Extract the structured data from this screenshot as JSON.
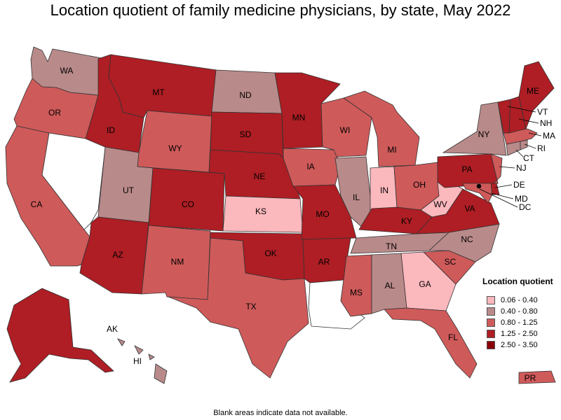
{
  "title": "Location quotient of family medicine physicians, by state, May 2022",
  "footnote": "Blank areas indicate data not available.",
  "legend": {
    "title": "Location quotient",
    "items": [
      {
        "label": "0.06 - 0.40",
        "color": "#fbb8bd"
      },
      {
        "label": "0.40 - 0.80",
        "color": "#b98a8a"
      },
      {
        "label": "0.80 - 1.25",
        "color": "#cf5a5a"
      },
      {
        "label": "1.25 - 2.50",
        "color": "#ae1e24"
      },
      {
        "label": "2.50 - 3.50",
        "color": "#8a0009"
      }
    ]
  },
  "no_data_color": "#ffffff",
  "states": {
    "WA": {
      "label": "WA",
      "class": 1
    },
    "OR": {
      "label": "OR",
      "class": 2
    },
    "CA": {
      "label": "CA",
      "class": 2
    },
    "NV": {
      "label": "",
      "class": -1
    },
    "ID": {
      "label": "ID",
      "class": 3
    },
    "MT": {
      "label": "MT",
      "class": 3
    },
    "WY": {
      "label": "WY",
      "class": 2
    },
    "UT": {
      "label": "UT",
      "class": 1
    },
    "AZ": {
      "label": "AZ",
      "class": 3
    },
    "CO": {
      "label": "CO",
      "class": 3
    },
    "NM": {
      "label": "NM",
      "class": 2
    },
    "ND": {
      "label": "ND",
      "class": 1
    },
    "SD": {
      "label": "SD",
      "class": 3
    },
    "NE": {
      "label": "NE",
      "class": 3
    },
    "KS": {
      "label": "KS",
      "class": 0
    },
    "OK": {
      "label": "OK",
      "class": 3
    },
    "TX": {
      "label": "TX",
      "class": 2
    },
    "MN": {
      "label": "MN",
      "class": 3
    },
    "IA": {
      "label": "IA",
      "class": 2
    },
    "MO": {
      "label": "MO",
      "class": 3
    },
    "AR": {
      "label": "AR",
      "class": 3
    },
    "LA": {
      "label": "",
      "class": -1
    },
    "WI": {
      "label": "WI",
      "class": 2
    },
    "IL": {
      "label": "IL",
      "class": 1
    },
    "MI": {
      "label": "MI",
      "class": 2
    },
    "IN": {
      "label": "IN",
      "class": 0
    },
    "OH": {
      "label": "OH",
      "class": 2
    },
    "KY": {
      "label": "KY",
      "class": 3
    },
    "TN": {
      "label": "TN",
      "class": 1
    },
    "MS": {
      "label": "MS",
      "class": 2
    },
    "AL": {
      "label": "AL",
      "class": 1
    },
    "GA": {
      "label": "GA",
      "class": 0
    },
    "FL": {
      "label": "FL",
      "class": 2
    },
    "SC": {
      "label": "SC",
      "class": 2
    },
    "NC": {
      "label": "NC",
      "class": 1
    },
    "VA": {
      "label": "VA",
      "class": 3
    },
    "WV": {
      "label": "WV",
      "class": 0
    },
    "PA": {
      "label": "PA",
      "class": 3
    },
    "NY": {
      "label": "NY",
      "class": 1
    },
    "VT": {
      "label": "VT",
      "class": 3
    },
    "NH": {
      "label": "NH",
      "class": 3
    },
    "ME": {
      "label": "ME",
      "class": 3
    },
    "MA": {
      "label": "MA",
      "class": 2
    },
    "RI": {
      "label": "RI",
      "class": 1
    },
    "CT": {
      "label": "CT",
      "class": 1
    },
    "NJ": {
      "label": "NJ",
      "class": 2
    },
    "DE": {
      "label": "DE",
      "class": 3
    },
    "MD": {
      "label": "MD",
      "class": 2
    },
    "DC": {
      "label": "DC",
      "class": 4
    },
    "AK": {
      "label": "AK",
      "class": 3
    },
    "HI": {
      "label": "HI",
      "class": 1
    },
    "PR": {
      "label": "PR",
      "class": 2
    }
  }
}
